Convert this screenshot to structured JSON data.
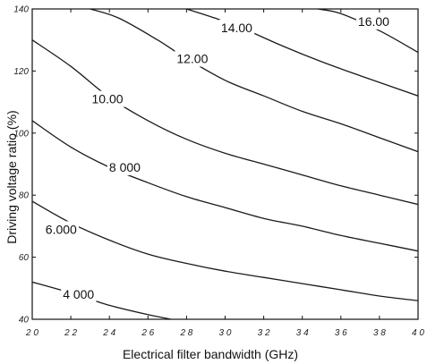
{
  "chart_data": {
    "type": "contour",
    "xlabel": "Electrical filter bandwidth (GHz)",
    "ylabel": "Driving voltage ratio (%)",
    "xlim": [
      20,
      40
    ],
    "ylim": [
      40,
      140
    ],
    "x_ticks": [
      20,
      22,
      24,
      26,
      28,
      30,
      32,
      34,
      36,
      38,
      40
    ],
    "x_tick_labels": [
      "2 0",
      "2 2",
      "2 4",
      "2 6",
      "2 8",
      "3 0",
      "3 2",
      "3 4",
      "3 6",
      "3 8",
      "4 0"
    ],
    "y_ticks": [
      40,
      60,
      80,
      100,
      120,
      140
    ],
    "y_tick_labels": [
      "40",
      "60",
      "80",
      "100",
      "120",
      "140"
    ],
    "grid": false,
    "contours": [
      {
        "label": "4 000",
        "label_at": [
          22.4,
          48
        ],
        "points": [
          [
            20,
            52
          ],
          [
            22,
            48.5
          ],
          [
            24,
            44.5
          ],
          [
            26,
            41.5
          ],
          [
            27.2,
            40
          ]
        ]
      },
      {
        "label": "6.000",
        "label_at": [
          21.5,
          69
        ],
        "points": [
          [
            20,
            78
          ],
          [
            22,
            71
          ],
          [
            24,
            65.5
          ],
          [
            26,
            61
          ],
          [
            28,
            58
          ],
          [
            30,
            55.5
          ],
          [
            32,
            53.5
          ],
          [
            34,
            51.5
          ],
          [
            36,
            49.5
          ],
          [
            38,
            47.5
          ],
          [
            40,
            46
          ]
        ]
      },
      {
        "label": "8 000",
        "label_at": [
          24.8,
          89
        ],
        "points": [
          [
            20,
            104
          ],
          [
            22,
            95.5
          ],
          [
            24,
            89
          ],
          [
            26,
            84
          ],
          [
            28,
            79.5
          ],
          [
            30,
            76
          ],
          [
            32,
            72.5
          ],
          [
            34,
            70
          ],
          [
            36,
            67
          ],
          [
            38,
            64.5
          ],
          [
            40,
            62
          ]
        ]
      },
      {
        "label": "10.00",
        "label_at": [
          23.9,
          111
        ],
        "points": [
          [
            20,
            130
          ],
          [
            22,
            121.5
          ],
          [
            24,
            111.5
          ],
          [
            26,
            104
          ],
          [
            28,
            98
          ],
          [
            30,
            93.5
          ],
          [
            32,
            90
          ],
          [
            34,
            86.5
          ],
          [
            36,
            83
          ],
          [
            38,
            80
          ],
          [
            40,
            77
          ]
        ]
      },
      {
        "label": "12.00",
        "label_at": [
          28.3,
          124
        ],
        "points": [
          [
            23,
            140
          ],
          [
            24.5,
            137
          ],
          [
            26.5,
            130
          ],
          [
            28,
            124
          ],
          [
            30,
            117
          ],
          [
            32,
            112
          ],
          [
            34,
            107
          ],
          [
            36,
            103
          ],
          [
            38,
            98.5
          ],
          [
            40,
            94
          ]
        ]
      },
      {
        "label": "14.00",
        "label_at": [
          30.6,
          134
        ],
        "points": [
          [
            28,
            140
          ],
          [
            29.5,
            137
          ],
          [
            31,
            133.5
          ],
          [
            33,
            128
          ],
          [
            35,
            123
          ],
          [
            37,
            118.5
          ],
          [
            40,
            112
          ]
        ]
      },
      {
        "label": "16.00",
        "label_at": [
          37.7,
          136
        ],
        "points": [
          [
            34.8,
            140
          ],
          [
            36,
            138.5
          ],
          [
            38,
            133
          ],
          [
            40,
            126
          ]
        ]
      }
    ]
  }
}
